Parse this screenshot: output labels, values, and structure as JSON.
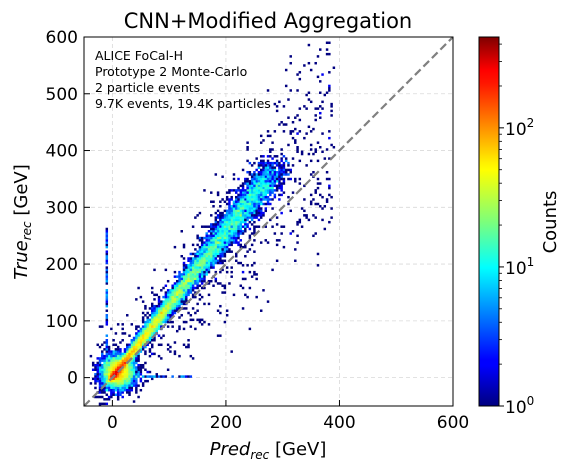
{
  "chart_data": {
    "type": "heatmap",
    "title": "CNN+Modified Aggregation",
    "xlabel": {
      "var": "Pred",
      "sub": "rec",
      "unit": " [GeV]"
    },
    "ylabel": {
      "var": "True",
      "sub": "rec",
      "unit": " [GeV]"
    },
    "xlim": [
      -50,
      600
    ],
    "ylim": [
      -50,
      600
    ],
    "xticks": [
      0,
      200,
      400,
      600
    ],
    "yticks": [
      0,
      100,
      200,
      300,
      400,
      500,
      600
    ],
    "grid": true,
    "annotation": [
      "ALICE FoCal-H",
      "Prototype 2 Monte-Carlo",
      "2 particle events",
      "9.7K events, 19.4K particles"
    ],
    "reference_line": {
      "style": "dashed",
      "color": "#808080",
      "from": [
        -50,
        -50
      ],
      "to": [
        600,
        600
      ]
    },
    "colorbar": {
      "label": "Counts",
      "scale": "log",
      "range": [
        1,
        450
      ],
      "ticks": [
        {
          "value": 1,
          "base": "10",
          "exp": "0"
        },
        {
          "value": 10,
          "base": "10",
          "exp": "1"
        },
        {
          "value": 100,
          "base": "10",
          "exp": "2"
        }
      ],
      "colormap": "jet"
    },
    "bins": {
      "x_width": 4,
      "y_width": 4
    },
    "features": {
      "main_ridge": {
        "from": [
          0,
          0
        ],
        "to": [
          280,
          360
        ],
        "peak_counts": 300
      },
      "row_y0": {
        "y": 0,
        "x_range": [
          -10,
          140
        ],
        "counts": 8
      },
      "column_x0": {
        "x": -10,
        "y_range": [
          -25,
          270
        ],
        "counts": 6
      },
      "core": {
        "center": [
          10,
          10
        ],
        "counts": 450
      }
    }
  }
}
